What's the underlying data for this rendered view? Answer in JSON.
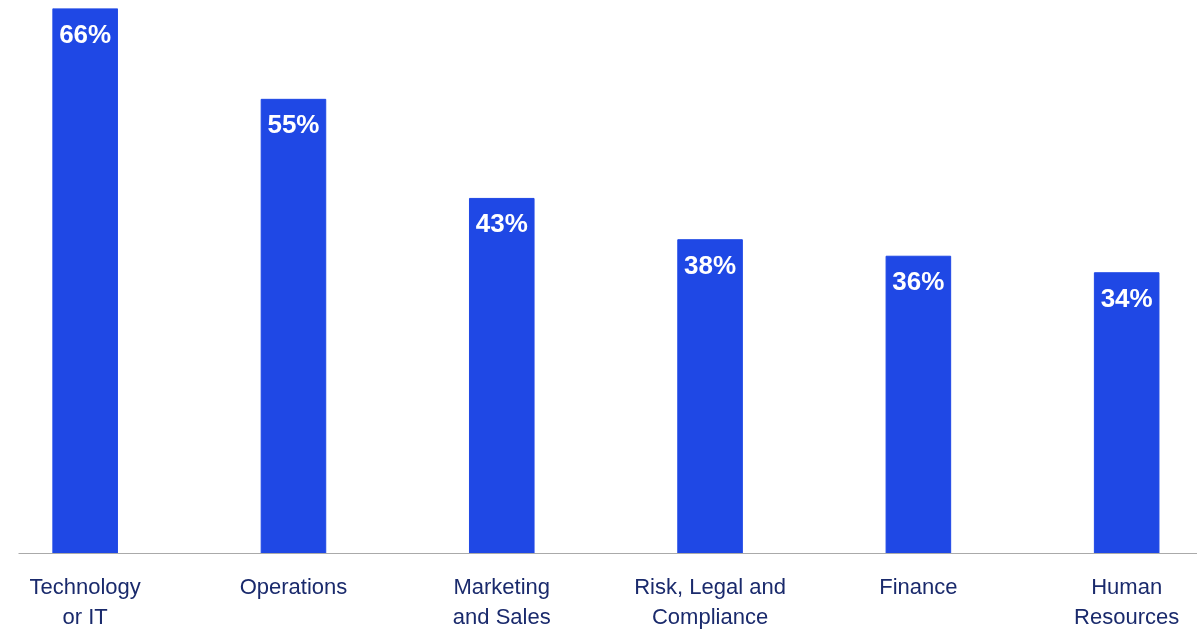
{
  "chart_data": {
    "type": "bar",
    "categories": [
      "Technology\nor IT",
      "Operations",
      "Marketing\nand Sales",
      "Risk, Legal and\nCompliance",
      "Finance",
      "Human\nResources"
    ],
    "values": [
      66,
      55,
      43,
      38,
      36,
      34
    ],
    "value_labels": [
      "66%",
      "55%",
      "43%",
      "38%",
      "36%",
      "34%"
    ],
    "color": "#1f48e5",
    "grid": false
  }
}
